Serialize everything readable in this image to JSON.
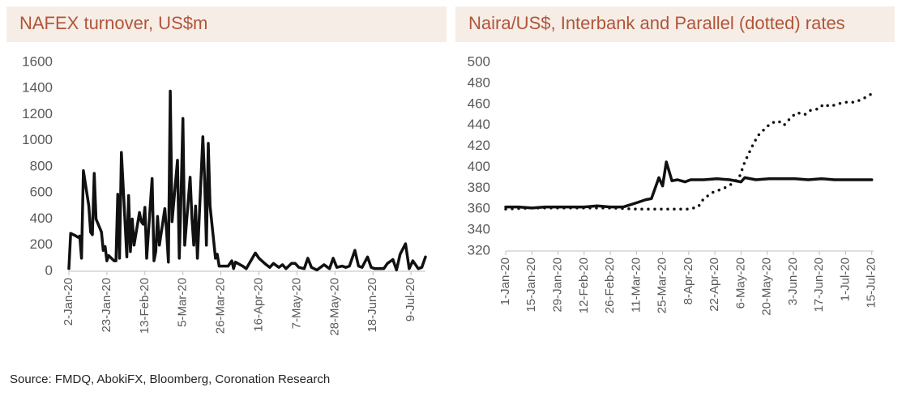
{
  "chart_data": [
    {
      "type": "line",
      "title": "NAFEX turnover, US$m",
      "xlim": [
        "2020-01-02",
        "2020-07-17"
      ],
      "ylim": [
        0,
        1600
      ],
      "yticks": [
        0,
        200,
        400,
        600,
        800,
        1000,
        1200,
        1400,
        1600
      ],
      "xticks": [
        {
          "value": "2020-01-02",
          "label": "2-Jan-20"
        },
        {
          "value": "2020-01-23",
          "label": "23-Jan-20"
        },
        {
          "value": "2020-02-13",
          "label": "13-Feb-20"
        },
        {
          "value": "2020-03-05",
          "label": "5-Mar-20"
        },
        {
          "value": "2020-03-26",
          "label": "26-Mar-20"
        },
        {
          "value": "2020-04-16",
          "label": "16-Apr-20"
        },
        {
          "value": "2020-05-07",
          "label": "7-May-20"
        },
        {
          "value": "2020-05-28",
          "label": "28-May-20"
        },
        {
          "value": "2020-06-18",
          "label": "18-Jun-20"
        },
        {
          "value": "2020-07-09",
          "label": "9-Jul-20"
        }
      ],
      "series": [
        {
          "color": "#111111",
          "style": "solid",
          "x": [
            "2020-01-02",
            "2020-01-03",
            "2020-01-06",
            "2020-01-07",
            "2020-01-08",
            "2020-01-09",
            "2020-01-10",
            "2020-01-13",
            "2020-01-14",
            "2020-01-15",
            "2020-01-16",
            "2020-01-17",
            "2020-01-20",
            "2020-01-21",
            "2020-01-22",
            "2020-01-23",
            "2020-01-24",
            "2020-01-27",
            "2020-01-28",
            "2020-01-29",
            "2020-01-30",
            "2020-01-31",
            "2020-02-03",
            "2020-02-04",
            "2020-02-05",
            "2020-02-06",
            "2020-02-07",
            "2020-02-10",
            "2020-02-11",
            "2020-02-12",
            "2020-02-13",
            "2020-02-14",
            "2020-02-17",
            "2020-02-18",
            "2020-02-19",
            "2020-02-20",
            "2020-02-21",
            "2020-02-24",
            "2020-02-25",
            "2020-02-26",
            "2020-02-27",
            "2020-02-28",
            "2020-03-02",
            "2020-03-03",
            "2020-03-04",
            "2020-03-05",
            "2020-03-06",
            "2020-03-09",
            "2020-03-10",
            "2020-03-11",
            "2020-03-12",
            "2020-03-13",
            "2020-03-16",
            "2020-03-17",
            "2020-03-18",
            "2020-03-19",
            "2020-03-20",
            "2020-03-23",
            "2020-03-24",
            "2020-03-25",
            "2020-03-30",
            "2020-04-01",
            "2020-04-02",
            "2020-04-03",
            "2020-04-07",
            "2020-04-09",
            "2020-04-14",
            "2020-04-16",
            "2020-04-20",
            "2020-04-22",
            "2020-04-24",
            "2020-04-27",
            "2020-04-29",
            "2020-05-01",
            "2020-05-04",
            "2020-05-06",
            "2020-05-08",
            "2020-05-11",
            "2020-05-13",
            "2020-05-15",
            "2020-05-18",
            "2020-05-20",
            "2020-05-22",
            "2020-05-25",
            "2020-05-27",
            "2020-05-29",
            "2020-06-01",
            "2020-06-03",
            "2020-06-05",
            "2020-06-08",
            "2020-06-10",
            "2020-06-12",
            "2020-06-15",
            "2020-06-17",
            "2020-06-19",
            "2020-06-22",
            "2020-06-24",
            "2020-06-26",
            "2020-06-29",
            "2020-07-01",
            "2020-07-03",
            "2020-07-06",
            "2020-07-08",
            "2020-07-10",
            "2020-07-13",
            "2020-07-15",
            "2020-07-17"
          ],
          "values": [
            20,
            290,
            270,
            260,
            270,
            100,
            770,
            500,
            300,
            280,
            750,
            400,
            300,
            160,
            190,
            80,
            120,
            80,
            80,
            590,
            100,
            910,
            110,
            580,
            150,
            400,
            200,
            450,
            380,
            360,
            490,
            100,
            710,
            80,
            150,
            420,
            200,
            480,
            300,
            70,
            1380,
            380,
            850,
            100,
            600,
            1170,
            200,
            720,
            400,
            200,
            500,
            100,
            1030,
            700,
            200,
            980,
            500,
            100,
            130,
            40,
            40,
            80,
            20,
            70,
            40,
            20,
            140,
            100,
            50,
            30,
            60,
            30,
            50,
            20,
            60,
            60,
            30,
            20,
            100,
            30,
            10,
            30,
            50,
            20,
            100,
            30,
            40,
            30,
            40,
            160,
            40,
            30,
            110,
            30,
            20,
            20,
            20,
            60,
            90,
            10,
            130,
            210,
            20,
            80,
            20,
            30,
            110
          ]
        }
      ]
    },
    {
      "type": "line",
      "title": "Naira/US$, Interbank and Parallel (dotted) rates",
      "xlim": [
        "2020-01-01",
        "2020-07-16"
      ],
      "ylim": [
        320,
        500
      ],
      "yticks": [
        320,
        340,
        360,
        380,
        400,
        420,
        440,
        460,
        480,
        500
      ],
      "xticks": [
        {
          "value": "2020-01-01",
          "label": "1-Jan-20"
        },
        {
          "value": "2020-01-15",
          "label": "15-Jan-20"
        },
        {
          "value": "2020-01-29",
          "label": "29-Jan-20"
        },
        {
          "value": "2020-02-12",
          "label": "12-Feb-20"
        },
        {
          "value": "2020-02-26",
          "label": "26-Feb-20"
        },
        {
          "value": "2020-03-11",
          "label": "11-Mar-20"
        },
        {
          "value": "2020-03-25",
          "label": "25-Mar-20"
        },
        {
          "value": "2020-04-08",
          "label": "8-Apr-20"
        },
        {
          "value": "2020-04-22",
          "label": "22-Apr-20"
        },
        {
          "value": "2020-05-06",
          "label": "6-May-20"
        },
        {
          "value": "2020-05-20",
          "label": "20-May-20"
        },
        {
          "value": "2020-06-03",
          "label": "3-Jun-20"
        },
        {
          "value": "2020-06-17",
          "label": "17-Jun-20"
        },
        {
          "value": "2020-07-01",
          "label": "1-Jul-20"
        },
        {
          "value": "2020-07-15",
          "label": "15-Jul-20"
        }
      ],
      "series": [
        {
          "color": "#111111",
          "style": "solid",
          "x": [
            "2020-01-01",
            "2020-01-08",
            "2020-01-15",
            "2020-01-22",
            "2020-01-29",
            "2020-02-05",
            "2020-02-12",
            "2020-02-19",
            "2020-02-26",
            "2020-03-04",
            "2020-03-11",
            "2020-03-16",
            "2020-03-19",
            "2020-03-23",
            "2020-03-25",
            "2020-03-27",
            "2020-03-30",
            "2020-04-02",
            "2020-04-06",
            "2020-04-09",
            "2020-04-16",
            "2020-04-23",
            "2020-04-30",
            "2020-05-06",
            "2020-05-08",
            "2020-05-14",
            "2020-05-21",
            "2020-05-28",
            "2020-06-04",
            "2020-06-11",
            "2020-06-18",
            "2020-06-25",
            "2020-07-02",
            "2020-07-09",
            "2020-07-15"
          ],
          "values": [
            362,
            362,
            361,
            362,
            362,
            362,
            362,
            363,
            362,
            362,
            366,
            369,
            370,
            390,
            382,
            405,
            387,
            388,
            386,
            388,
            388,
            389,
            388,
            386,
            390,
            388,
            389,
            389,
            389,
            388,
            389,
            388,
            388,
            388,
            388
          ]
        },
        {
          "color": "#111111",
          "style": "dotted",
          "x": [
            "2020-01-01",
            "2020-01-15",
            "2020-01-29",
            "2020-02-12",
            "2020-02-26",
            "2020-03-11",
            "2020-03-25",
            "2020-04-08",
            "2020-04-13",
            "2020-04-16",
            "2020-04-21",
            "2020-04-27",
            "2020-05-01",
            "2020-05-05",
            "2020-05-08",
            "2020-05-12",
            "2020-05-15",
            "2020-05-19",
            "2020-05-22",
            "2020-05-26",
            "2020-05-29",
            "2020-06-02",
            "2020-06-05",
            "2020-06-09",
            "2020-06-12",
            "2020-06-17",
            "2020-06-19",
            "2020-06-23",
            "2020-06-26",
            "2020-07-01",
            "2020-07-06",
            "2020-07-10",
            "2020-07-15"
          ],
          "values": [
            360,
            361,
            361,
            361,
            361,
            360,
            360,
            360,
            362,
            370,
            376,
            380,
            384,
            390,
            405,
            420,
            430,
            437,
            442,
            444,
            440,
            448,
            452,
            450,
            454,
            456,
            460,
            458,
            460,
            462,
            462,
            465,
            470
          ]
        }
      ]
    }
  ],
  "source": "Source: FMDQ, AbokiFX, Bloomberg, Coronation Research"
}
